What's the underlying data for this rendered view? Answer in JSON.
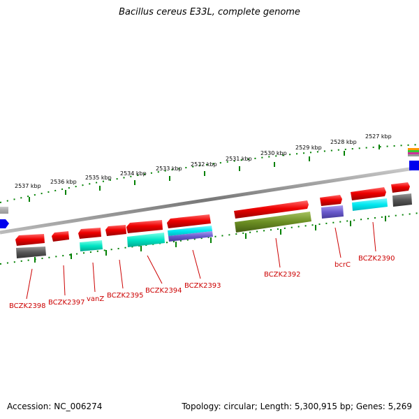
{
  "title": "Bacillus cereus E33L, complete genome",
  "footer": {
    "accession": "Accession: NC_006274",
    "topology": "Topology: circular; Length: 5,300,915 bp; Genes: 5,269"
  },
  "colors": {
    "forward_cds": "#ee0000",
    "reverse_cds": "#ee0000",
    "gray_feature": "#555555",
    "cyan_feature": "#00e5d0",
    "olive_feature": "#6b8e23",
    "purple_feature": "#6a5acd",
    "tick": "#006400",
    "backbone": "#888888",
    "label": "#cc0000"
  },
  "ruler": {
    "labels": [
      "2537 kbp",
      "2536 kbp",
      "2535 kbp",
      "2534 kbp",
      "2533 kbp",
      "2532 kbp",
      "2531 kbp",
      "2530 kbp",
      "2529 kbp",
      "2528 kbp",
      "2527 kbp"
    ]
  },
  "genes": [
    {
      "label": "BCZK2398"
    },
    {
      "label": "BCZK2397"
    },
    {
      "label": "vanZ"
    },
    {
      "label": "BCZK2395"
    },
    {
      "label": "BCZK2394"
    },
    {
      "label": "BCZK2393"
    },
    {
      "label": "BCZK2392"
    },
    {
      "label": "bcrC"
    },
    {
      "label": "BCZK2390"
    }
  ]
}
